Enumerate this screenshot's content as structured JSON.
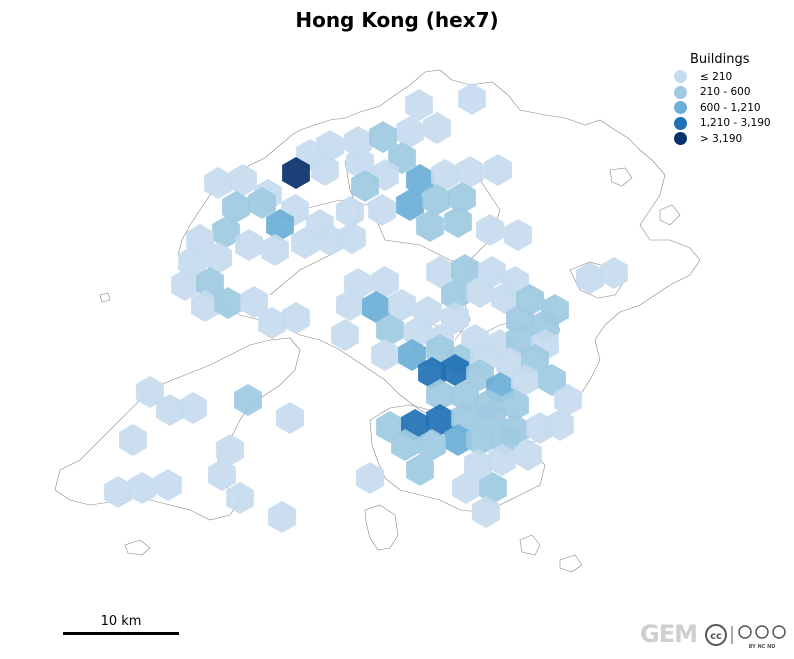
{
  "map": {
    "title": "Hong Kong (hex7)"
  },
  "legend": {
    "title": "Buildings",
    "items": [
      {
        "label": "≤ 210",
        "color": "#c6dbef"
      },
      {
        "label": "210 - 600",
        "color": "#9ecae1"
      },
      {
        "label": "600 - 1,210",
        "color": "#6baed6"
      },
      {
        "label": "1,210 - 3,190",
        "color": "#2171b5"
      },
      {
        "label": "> 3,190",
        "color": "#08306b"
      }
    ]
  },
  "scalebar": {
    "label": "10 km"
  },
  "footer": {
    "logo_text": "GEM",
    "license_text": "BY  NC  ND"
  }
}
